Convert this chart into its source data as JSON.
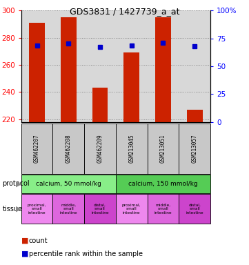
{
  "title": "GDS3831 / 1427739_a_at",
  "samples": [
    "GSM462207",
    "GSM462208",
    "GSM462209",
    "GSM213045",
    "GSM213051",
    "GSM213057"
  ],
  "bar_values": [
    291,
    295,
    243,
    269,
    295,
    227
  ],
  "bar_bottom": 218,
  "percentile_values": [
    274.5,
    276,
    273,
    274,
    276.5,
    273.5
  ],
  "ylim_left": [
    218,
    300
  ],
  "ylim_right": [
    0,
    100
  ],
  "yticks_left": [
    220,
    240,
    260,
    280,
    300
  ],
  "yticks_right": [
    0,
    25,
    50,
    75,
    100
  ],
  "bar_color": "#cc2200",
  "dot_color": "#0000cc",
  "protocol_labels": [
    "calcium, 50 mmol/kg",
    "calcium, 150 mmol/kg"
  ],
  "protocol_color": "#88ee88",
  "tissue_labels": [
    "proximal,\nsmall\nintestine",
    "middle,\nsmall\nintestine",
    "distal,\nsmall\nintestine",
    "proximal,\nsmall\nintestine",
    "middle,\nsmall\nintestine",
    "distal,\nsmall\nintestine"
  ],
  "tissue_colors": [
    "#ee88ee",
    "#dd66dd",
    "#cc44cc",
    "#ee88ee",
    "#dd66dd",
    "#cc44cc"
  ],
  "legend_count_color": "#cc2200",
  "legend_dot_color": "#0000cc",
  "grid_color": "#888888",
  "plot_bg": "#d8d8d8",
  "sample_bg": "#c8c8c8"
}
